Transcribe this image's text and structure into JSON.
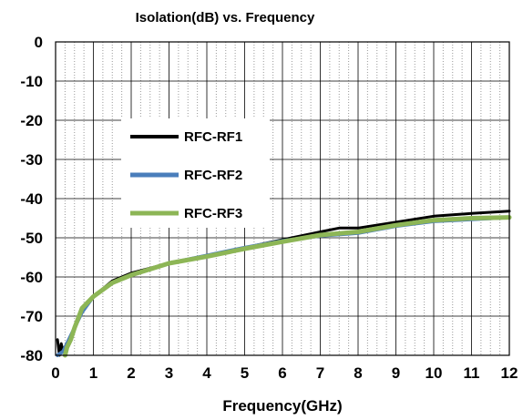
{
  "chart_data": {
    "type": "line",
    "title": "Isolation(dB)  vs. Frequency",
    "xlabel": "Frequency(GHz)",
    "ylabel": "",
    "xlim": [
      0,
      12
    ],
    "ylim": [
      -80,
      0
    ],
    "x_ticks": [
      "0",
      "1",
      "2",
      "3",
      "4",
      "5",
      "6",
      "7",
      "8",
      "9",
      "10",
      "11",
      "12"
    ],
    "y_ticks": [
      "0",
      "-10",
      "-20",
      "-30",
      "-40",
      "-50",
      "-60",
      "-70",
      "-80"
    ],
    "grid": {
      "major_y": true,
      "major_x": true,
      "minor_x_dotted": true
    },
    "legend_position": "center-left",
    "series": [
      {
        "name": "RFC-RF1",
        "color": "#000000",
        "x": [
          0.05,
          0.1,
          0.15,
          0.2,
          0.3,
          0.5,
          0.7,
          1,
          1.5,
          2,
          3,
          4,
          5,
          6,
          7,
          7.5,
          8,
          9,
          10,
          11,
          12
        ],
        "y": [
          -76,
          -80,
          -77,
          -79,
          -77,
          -73,
          -68,
          -65,
          -61,
          -59,
          -56.5,
          -54.5,
          -52.5,
          -50.5,
          -48.5,
          -47.5,
          -47.5,
          -46,
          -44.5,
          -43.8,
          -43.2
        ]
      },
      {
        "name": "RFC-RF2",
        "color": "#4a7ebb",
        "x": [
          0.05,
          0.2,
          0.3,
          0.5,
          0.7,
          1,
          1.5,
          2,
          3,
          4,
          5,
          6,
          7,
          8,
          9,
          10,
          11,
          12
        ],
        "y": [
          -80,
          -79,
          -77,
          -73,
          -69,
          -65,
          -61.5,
          -59.5,
          -56.5,
          -54.5,
          -52.5,
          -50.8,
          -49.5,
          -48.8,
          -47,
          -45.8,
          -45.3,
          -44.8
        ]
      },
      {
        "name": "RFC-RF3",
        "color": "#8db656",
        "x": [
          0.25,
          0.3,
          0.4,
          0.5,
          0.7,
          1,
          1.5,
          2,
          3,
          4,
          5,
          6,
          7,
          8,
          9,
          10,
          11,
          12
        ],
        "y": [
          -80,
          -78,
          -76,
          -73,
          -68,
          -65,
          -61.5,
          -59.5,
          -56.5,
          -54.8,
          -52.8,
          -51,
          -49.3,
          -48.5,
          -46.8,
          -45.5,
          -45,
          -44.8
        ]
      }
    ]
  }
}
